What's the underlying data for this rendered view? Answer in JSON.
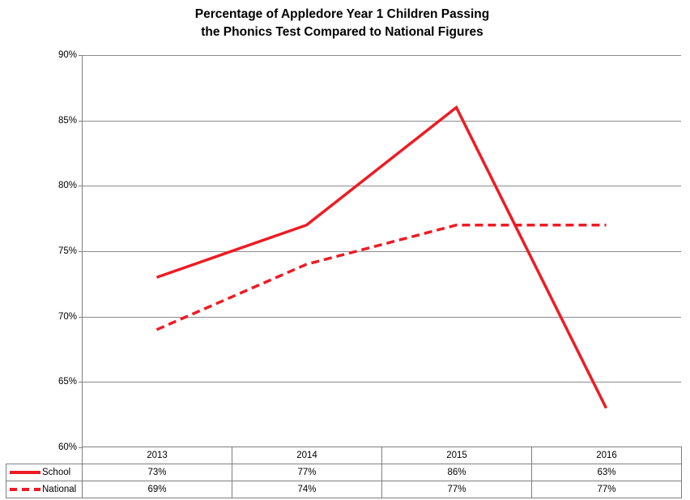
{
  "chart": {
    "title_line1": "Percentage of Appledore Year 1 Children Passing",
    "title_line2": "the Phonics Test Compared to National Figures"
  },
  "chart_data": {
    "type": "line",
    "title": "Percentage of Appledore Year 1 Children Passing the Phonics Test Compared to National Figures",
    "categories": [
      "2013",
      "2014",
      "2015",
      "2016"
    ],
    "series": [
      {
        "name": "School",
        "line_style": "solid",
        "values": [
          73,
          77,
          86,
          63
        ]
      },
      {
        "name": "National",
        "line_style": "dashed",
        "values": [
          69,
          74,
          77,
          77
        ]
      }
    ],
    "xlabel": "",
    "ylabel": "",
    "ylim": [
      60,
      90
    ],
    "ytick_step": 5,
    "y_tick_labels": [
      "90%",
      "85%",
      "80%",
      "75%",
      "70%",
      "65%",
      "60%"
    ],
    "grid": true,
    "legend_position": "left-of-data-table",
    "line_color": "#ed1c24",
    "gridline_color": "#8c8c8c",
    "axis_color": "#808080"
  },
  "data_table": {
    "header": [
      "2013",
      "2014",
      "2015",
      "2016"
    ],
    "rows": [
      {
        "label": "School",
        "swatch": "solid-red-line",
        "values": [
          "73%",
          "77%",
          "86%",
          "63%"
        ]
      },
      {
        "label": "National",
        "swatch": "dashed-red-line",
        "values": [
          "69%",
          "74%",
          "77%",
          "77%"
        ]
      }
    ]
  },
  "colors": {
    "series_red": "#ed1c24",
    "gridline": "#8c8c8c",
    "axis": "#808080",
    "table_border": "#7f7f7f",
    "text": "#000000",
    "background": "#ffffff"
  }
}
